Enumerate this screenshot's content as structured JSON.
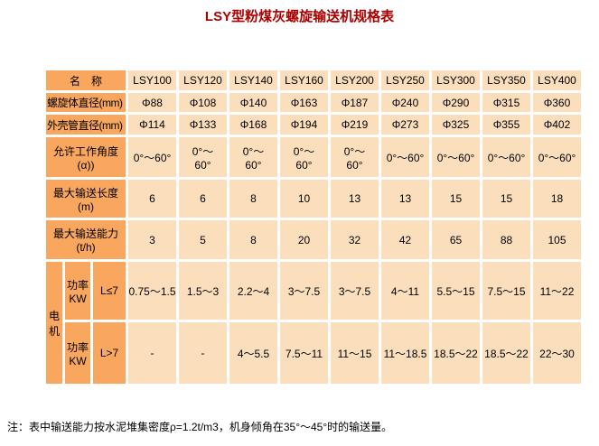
{
  "title": "LSY型粉煤灰螺旋输送机规格表",
  "note": "注：表中输送能力按水泥堆集密度ρ=1.2t/m3，机身倾角在35°～45°时的输送量。",
  "colors": {
    "title_text": "#aa0000",
    "label_cell_bg": "#f9a75e",
    "data_cell_bg": "#fbdfbd"
  },
  "chart_data": {
    "type": "table",
    "header": [
      "名　称",
      "LSY100",
      "LSY120",
      "LSY140",
      "LSY160",
      "LSY200",
      "LSY250",
      "LSY300",
      "LSY350",
      "LSY400"
    ],
    "rows": [
      {
        "label": "螺旋体直径(mm)",
        "values": [
          "Φ88",
          "Φ108",
          "Φ140",
          "Φ163",
          "Φ187",
          "Φ240",
          "Φ290",
          "Φ315",
          "Φ360"
        ]
      },
      {
        "label": "外壳管直径(mm)",
        "values": [
          "Φ114",
          "Φ133",
          "Φ168",
          "Φ194",
          "Φ219",
          "Φ273",
          "Φ325",
          "Φ355",
          "Φ402"
        ]
      },
      {
        "label": "允许工作角度\n(α))",
        "values": [
          "0°～60°",
          "0°～\n60°",
          "0°～\n60°",
          "0°～\n60°",
          "0°～\n60°",
          "0°～60°",
          "0°～60°",
          "0°～60°",
          "0°～60°"
        ]
      },
      {
        "label": "最大输送长度\n(m)",
        "values": [
          "6",
          "6",
          "8",
          "10",
          "13",
          "13",
          "15",
          "15",
          "18"
        ]
      },
      {
        "label": "最大输送能力\n(t/h)",
        "values": [
          "3",
          "5",
          "8",
          "20",
          "32",
          "42",
          "65",
          "88",
          "105"
        ]
      }
    ],
    "motor": {
      "group_label": "电\n机",
      "power_label": "功率\nKW",
      "rows": [
        {
          "condition": "L≤7",
          "values": [
            "0.75～1.5",
            "1.5～3",
            "2.2～4",
            "3～7.5",
            "3～7.5",
            "4～11",
            "5.5～15",
            "7.5～15",
            "11～22"
          ]
        },
        {
          "condition": "L>7",
          "values": [
            "-",
            "-",
            "4～5.5",
            "7.5～11",
            "11～15",
            "11～18.5",
            "18.5～22",
            "18.5～22",
            "22～30"
          ]
        }
      ]
    }
  }
}
